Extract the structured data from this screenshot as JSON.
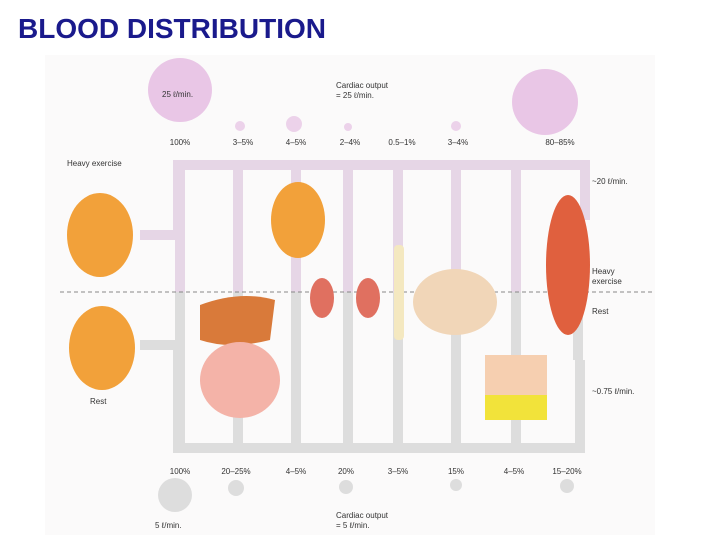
{
  "header": {
    "title": "BLOOD DISTRIBUTION"
  },
  "exercise": {
    "label": "Heavy exercise",
    "flow": "25 ℓ/min.",
    "cardiac_output": [
      "Cardiac output",
      "= 25 ℓ/min."
    ],
    "percentages": [
      "100%",
      "3–5%",
      "4–5%",
      "2–4%",
      "0.5–1%",
      "3–4%",
      "80–85%"
    ]
  },
  "rest": {
    "label": "Rest",
    "flow": "5 ℓ/min.",
    "cardiac_output": [
      "Cardiac output",
      "= 5 ℓ/min."
    ],
    "percentages": [
      "100%",
      "20–25%",
      "4–5%",
      "20%",
      "3–5%",
      "15%",
      "4–5%",
      "15–20%"
    ]
  },
  "muscle": {
    "exercise_flow": "~20 ℓ/min.",
    "exercise_label": [
      "Heavy",
      "exercise"
    ],
    "rest_label": "Rest",
    "rest_flow": "~0.75 ℓ/min."
  }
}
